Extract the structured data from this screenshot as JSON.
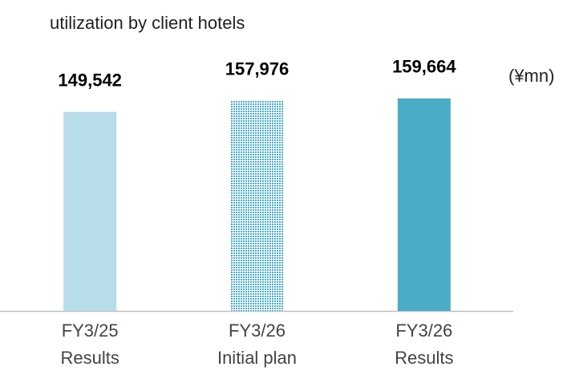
{
  "chart_data": {
    "type": "bar",
    "title": "utilization by client hotels",
    "unit": "(¥mn)",
    "categories": [
      [
        "FY3/25",
        "Results"
      ],
      [
        "FY3/26",
        "Initial plan"
      ],
      [
        "FY3/26",
        "Results"
      ]
    ],
    "values": [
      149542,
      157976,
      159664
    ],
    "value_labels": [
      "149,542",
      "157,976",
      "159,664"
    ],
    "colors": [
      "#b7dde8",
      "#4bacc6",
      "#4bacc6"
    ],
    "fills": [
      "solid",
      "dotted",
      "solid"
    ],
    "ylim": [
      0,
      180000
    ]
  }
}
